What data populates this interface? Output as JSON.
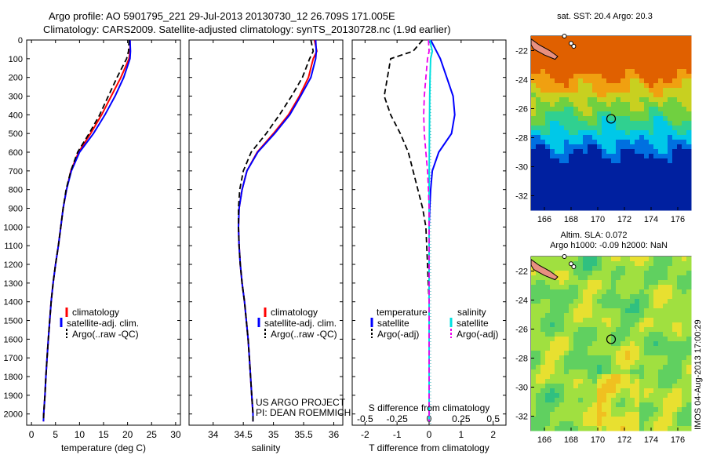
{
  "title": {
    "line1": "Argo profile: AO 5901795_221 29-Jul-2013 20130730_12 26.709S 171.005E",
    "line2": "Climatology: CARS2009. Satellite-adjusted climatology: synTS_20130728.nc (1.9d earlier)"
  },
  "credit": "IMOS 04-Aug-2013 17:00:29",
  "chart_data": [
    {
      "id": "temperature",
      "type": "line",
      "xlabel": "temperature (deg C)",
      "xlim": [
        -1,
        31
      ],
      "xticks": [
        0,
        5,
        10,
        15,
        20,
        25,
        30
      ],
      "ylim": [
        2060,
        0
      ],
      "yticks": [
        0,
        100,
        200,
        300,
        400,
        500,
        600,
        700,
        800,
        900,
        1000,
        1100,
        1200,
        1300,
        1400,
        1500,
        1600,
        1700,
        1800,
        1900,
        2000
      ],
      "legend": {
        "position": "lower-left",
        "entries": [
          "climatology",
          "satellite-adj. clim.",
          "Argo(..raw -QC)"
        ]
      },
      "series": [
        {
          "name": "climatology",
          "color": "#ff0000",
          "dash": "solid",
          "points": [
            [
              20.5,
              0
            ],
            [
              20.5,
              60
            ],
            [
              20.3,
              100
            ],
            [
              18.6,
              200
            ],
            [
              16.6,
              300
            ],
            [
              14.6,
              400
            ],
            [
              12.3,
              500
            ],
            [
              9.8,
              600
            ],
            [
              8.2,
              700
            ],
            [
              7.3,
              800
            ],
            [
              6.6,
              900
            ],
            [
              6.1,
              1000
            ],
            [
              5.6,
              1100
            ],
            [
              5.0,
              1200
            ],
            [
              4.5,
              1300
            ],
            [
              4.1,
              1400
            ],
            [
              3.8,
              1500
            ],
            [
              3.5,
              1600
            ],
            [
              3.25,
              1700
            ],
            [
              3.0,
              1800
            ],
            [
              2.8,
              1900
            ],
            [
              2.55,
              2000
            ],
            [
              2.5,
              2040
            ]
          ]
        },
        {
          "name": "satellite-adj. clim.",
          "color": "#0000ff",
          "dash": "solid",
          "points": [
            [
              20.5,
              0
            ],
            [
              20.6,
              60
            ],
            [
              20.5,
              100
            ],
            [
              19.2,
              200
            ],
            [
              17.4,
              300
            ],
            [
              15.3,
              400
            ],
            [
              12.9,
              500
            ],
            [
              10.0,
              600
            ],
            [
              8.3,
              700
            ],
            [
              7.3,
              800
            ],
            [
              6.6,
              900
            ],
            [
              6.1,
              1000
            ],
            [
              5.6,
              1100
            ],
            [
              5.0,
              1200
            ],
            [
              4.5,
              1300
            ],
            [
              4.1,
              1400
            ],
            [
              3.8,
              1500
            ],
            [
              3.5,
              1600
            ],
            [
              3.25,
              1700
            ],
            [
              3.0,
              1800
            ],
            [
              2.8,
              1900
            ],
            [
              2.55,
              2000
            ],
            [
              2.5,
              2040
            ]
          ]
        },
        {
          "name": "Argo(..raw -QC)",
          "color": "#000000",
          "dash": "dash",
          "points": [
            [
              20.3,
              0
            ],
            [
              20.2,
              60
            ],
            [
              19.8,
              100
            ],
            [
              17.8,
              200
            ],
            [
              16.0,
              300
            ],
            [
              14.2,
              400
            ],
            [
              12.0,
              500
            ],
            [
              9.6,
              600
            ],
            [
              8.2,
              700
            ],
            [
              7.2,
              800
            ],
            [
              6.6,
              900
            ],
            [
              6.1,
              1000
            ],
            [
              5.6,
              1100
            ],
            [
              5.0,
              1200
            ],
            [
              4.5,
              1300
            ],
            [
              4.1,
              1400
            ],
            [
              3.8,
              1500
            ],
            [
              3.5,
              1600
            ],
            [
              3.25,
              1700
            ],
            [
              3.0,
              1800
            ],
            [
              2.8,
              1900
            ],
            [
              2.55,
              2000
            ],
            [
              2.5,
              2040
            ]
          ]
        }
      ]
    },
    {
      "id": "salinity",
      "type": "line",
      "xlabel": "salinity",
      "xlim": [
        33.6,
        36.15
      ],
      "xticks": [
        34,
        34.5,
        35,
        35.5,
        36
      ],
      "ylim": [
        2060,
        0
      ],
      "legend": {
        "position": "lower-center",
        "entries": [
          "climatology",
          "satellite-adj. clim.",
          "Argo(..raw -QC)"
        ]
      },
      "annotation": [
        "US ARGO PROJECT",
        "PI: DEAN ROEMMICH"
      ],
      "series": [
        {
          "name": "climatology",
          "color": "#ff0000",
          "dash": "solid",
          "points": [
            [
              35.68,
              0
            ],
            [
              35.72,
              60
            ],
            [
              35.66,
              100
            ],
            [
              35.58,
              200
            ],
            [
              35.43,
              300
            ],
            [
              35.25,
              400
            ],
            [
              35.0,
              500
            ],
            [
              34.73,
              600
            ],
            [
              34.56,
              700
            ],
            [
              34.48,
              800
            ],
            [
              34.43,
              900
            ],
            [
              34.42,
              1000
            ],
            [
              34.43,
              1100
            ],
            [
              34.45,
              1200
            ],
            [
              34.48,
              1300
            ],
            [
              34.52,
              1400
            ],
            [
              34.55,
              1500
            ],
            [
              34.58,
              1600
            ],
            [
              34.6,
              1700
            ],
            [
              34.62,
              1800
            ],
            [
              34.64,
              1900
            ],
            [
              34.66,
              2000
            ],
            [
              34.66,
              2040
            ]
          ]
        },
        {
          "name": "satellite-adj. clim.",
          "color": "#0000ff",
          "dash": "solid",
          "points": [
            [
              35.7,
              0
            ],
            [
              35.71,
              60
            ],
            [
              35.7,
              100
            ],
            [
              35.62,
              200
            ],
            [
              35.45,
              300
            ],
            [
              35.27,
              400
            ],
            [
              35.02,
              500
            ],
            [
              34.74,
              600
            ],
            [
              34.56,
              700
            ],
            [
              34.48,
              800
            ],
            [
              34.43,
              900
            ],
            [
              34.42,
              1000
            ],
            [
              34.43,
              1100
            ],
            [
              34.45,
              1200
            ],
            [
              34.48,
              1300
            ],
            [
              34.52,
              1400
            ],
            [
              34.55,
              1500
            ],
            [
              34.58,
              1600
            ],
            [
              34.6,
              1700
            ],
            [
              34.62,
              1800
            ],
            [
              34.64,
              1900
            ],
            [
              34.66,
              2000
            ],
            [
              34.66,
              2040
            ]
          ]
        },
        {
          "name": "Argo(..raw -QC)",
          "color": "#000000",
          "dash": "dash",
          "points": [
            [
              35.62,
              0
            ],
            [
              35.66,
              60
            ],
            [
              35.6,
              100
            ],
            [
              35.48,
              200
            ],
            [
              35.3,
              300
            ],
            [
              35.1,
              400
            ],
            [
              34.88,
              500
            ],
            [
              34.63,
              600
            ],
            [
              34.5,
              700
            ],
            [
              34.44,
              800
            ],
            [
              34.42,
              900
            ],
            [
              34.42,
              1000
            ],
            [
              34.43,
              1100
            ],
            [
              34.45,
              1200
            ],
            [
              34.48,
              1300
            ],
            [
              34.52,
              1400
            ],
            [
              34.55,
              1500
            ],
            [
              34.58,
              1600
            ],
            [
              34.6,
              1700
            ],
            [
              34.62,
              1800
            ],
            [
              34.64,
              1900
            ],
            [
              34.66,
              2000
            ],
            [
              34.66,
              2040
            ]
          ]
        }
      ]
    },
    {
      "id": "difference",
      "type": "line",
      "xlabel": "T difference from climatology",
      "xlabel_top": "S difference from climatology",
      "xlim": [
        -2.4,
        2.4
      ],
      "xticks": [
        -2,
        -1,
        0,
        1,
        2
      ],
      "xticks_top": [
        -0.5,
        -0.25,
        0,
        0.25,
        0.5
      ],
      "xticks_top_labels": [
        "-0.5",
        "-0.25",
        "0",
        "0.25",
        "0.5"
      ],
      "ylim": [
        2060,
        0
      ],
      "legend": {
        "position": "lower-center",
        "headers": [
          "temperature",
          "salinity"
        ],
        "entries": [
          "satellite",
          "Argo(-adj)",
          "satellite",
          "Argo(-adj)"
        ]
      },
      "series": [
        {
          "name": "temperature satellite",
          "color": "#0000ff",
          "dash": "solid",
          "points": [
            [
              0.05,
              0
            ],
            [
              0.2,
              50
            ],
            [
              0.35,
              100
            ],
            [
              0.55,
              200
            ],
            [
              0.75,
              300
            ],
            [
              0.8,
              400
            ],
            [
              0.7,
              500
            ],
            [
              0.3,
              600
            ],
            [
              0.1,
              700
            ],
            [
              0.05,
              800
            ],
            [
              0.02,
              900
            ],
            [
              0.0,
              1000
            ],
            [
              0.0,
              1400
            ],
            [
              0.0,
              2040
            ]
          ]
        },
        {
          "name": "temperature Argo(-adj)",
          "color": "#000000",
          "dash": "dash",
          "points": [
            [
              -0.2,
              0
            ],
            [
              -0.5,
              60
            ],
            [
              -1.2,
              100
            ],
            [
              -1.3,
              200
            ],
            [
              -1.4,
              300
            ],
            [
              -1.2,
              400
            ],
            [
              -0.9,
              500
            ],
            [
              -0.65,
              600
            ],
            [
              -0.5,
              700
            ],
            [
              -0.35,
              800
            ],
            [
              -0.2,
              900
            ],
            [
              -0.1,
              1000
            ],
            [
              -0.05,
              1200
            ],
            [
              0.0,
              1400
            ],
            [
              0.0,
              2040
            ]
          ]
        },
        {
          "name": "salinity satellite",
          "color": "#00e0e0",
          "dash": "solid",
          "points": [
            [
              0.02,
              0
            ],
            [
              0.1,
              60
            ],
            [
              0.05,
              100
            ],
            [
              0.03,
              200
            ],
            [
              0.02,
              300
            ],
            [
              0.01,
              500
            ],
            [
              0.0,
              800
            ],
            [
              0.0,
              2040
            ]
          ]
        },
        {
          "name": "salinity Argo(-adj)",
          "color": "#ee00ee",
          "dash": "dash",
          "points": [
            [
              -0.02,
              0
            ],
            [
              0.0,
              60
            ],
            [
              -0.05,
              100
            ],
            [
              -0.1,
              200
            ],
            [
              -0.15,
              300
            ],
            [
              -0.17,
              400
            ],
            [
              -0.15,
              500
            ],
            [
              -0.1,
              600
            ],
            [
              -0.05,
              700
            ],
            [
              -0.02,
              800
            ],
            [
              0.0,
              900
            ],
            [
              0.0,
              2040
            ]
          ]
        }
      ]
    },
    {
      "id": "sst_map",
      "type": "heatmap",
      "title": "sat. SST: 20.4  Argo: 20.3",
      "xlim": [
        165,
        177
      ],
      "ylim": [
        -33,
        -21
      ],
      "xticks": [
        166,
        168,
        170,
        172,
        174,
        176
      ],
      "yticks": [
        -22,
        -24,
        -26,
        -28,
        -30,
        -32
      ],
      "marker": [
        171.0,
        -26.7
      ],
      "colors": [
        "#0020a0",
        "#0070e0",
        "#00c8e8",
        "#30d090",
        "#70d040",
        "#c8d020",
        "#f0a010",
        "#e06000"
      ]
    },
    {
      "id": "sla_map",
      "type": "heatmap",
      "title": "Altim. SLA: 0.072",
      "subtitle": "Argo h1000: -0.09 h2000: NaN",
      "xlim": [
        165,
        177
      ],
      "ylim": [
        -33,
        -21
      ],
      "xticks": [
        166,
        168,
        170,
        172,
        174,
        176
      ],
      "yticks": [
        -22,
        -24,
        -26,
        -28,
        -30,
        -32
      ],
      "marker": [
        171.0,
        -26.7
      ],
      "colors": [
        "#30c080",
        "#60d060",
        "#a0e040",
        "#e8e030",
        "#f0c020"
      ]
    }
  ]
}
